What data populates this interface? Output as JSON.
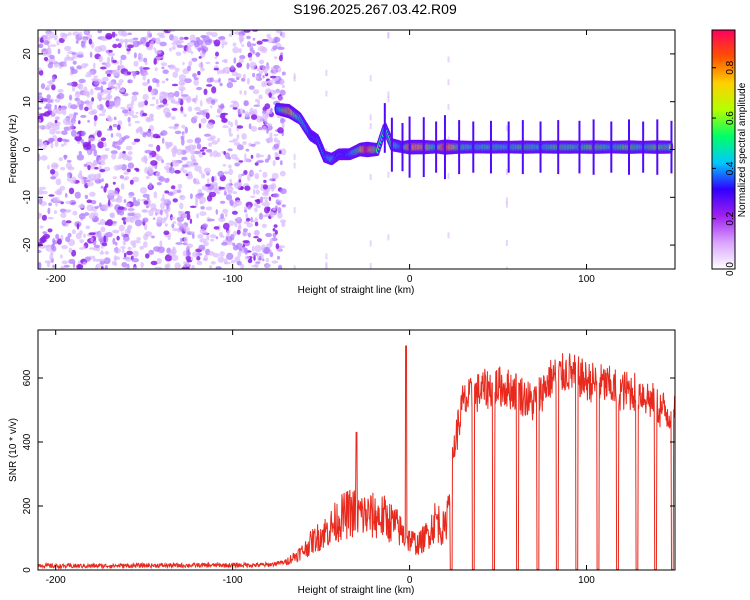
{
  "title": "S196.2025.267.03.42.R09",
  "chart_data": [
    {
      "type": "heatmap",
      "name": "spectrogram",
      "xlabel": "Height of straight line (km)",
      "ylabel": "Frequency (Hz)",
      "xlim": [
        -210,
        150
      ],
      "ylim": [
        -25,
        25
      ],
      "xticks": [
        -200,
        -100,
        0,
        100
      ],
      "yticks": [
        -20,
        -10,
        0,
        10,
        20
      ],
      "noise_region_x": [
        -210,
        -75
      ],
      "ridge": [
        {
          "x": -75,
          "f": 8.5,
          "a": 0.35
        },
        {
          "x": -68,
          "f": 8.0,
          "a": 0.75
        },
        {
          "x": -62,
          "f": 6.5,
          "a": 0.45
        },
        {
          "x": -56,
          "f": 3.0,
          "a": 0.35
        },
        {
          "x": -52,
          "f": 2.0,
          "a": 0.3
        },
        {
          "x": -48,
          "f": -1.5,
          "a": 0.35
        },
        {
          "x": -44,
          "f": -2.0,
          "a": 0.45
        },
        {
          "x": -40,
          "f": -1.0,
          "a": 0.3
        },
        {
          "x": -34,
          "f": -1.0,
          "a": 0.35
        },
        {
          "x": -28,
          "f": 0.0,
          "a": 0.6
        },
        {
          "x": -24,
          "f": 0.0,
          "a": 0.95
        },
        {
          "x": -18,
          "f": 0.0,
          "a": 0.5
        },
        {
          "x": -14,
          "f": 4.5,
          "a": 0.4
        },
        {
          "x": -10,
          "f": 1.0,
          "a": 0.55
        },
        {
          "x": -4,
          "f": 0.5,
          "a": 0.35
        },
        {
          "x": 0,
          "f": 0.5,
          "a": 0.8
        },
        {
          "x": 8,
          "f": 0.5,
          "a": 0.75
        },
        {
          "x": 15,
          "f": 0.5,
          "a": 0.45
        },
        {
          "x": 20,
          "f": 0.5,
          "a": 0.9
        },
        {
          "x": 28,
          "f": 0.5,
          "a": 0.55
        },
        {
          "x": 36,
          "f": 0.5,
          "a": 0.45
        },
        {
          "x": 46,
          "f": 0.5,
          "a": 0.5
        },
        {
          "x": 56,
          "f": 0.5,
          "a": 0.45
        },
        {
          "x": 64,
          "f": 0.5,
          "a": 0.55
        },
        {
          "x": 74,
          "f": 0.5,
          "a": 0.45
        },
        {
          "x": 84,
          "f": 0.5,
          "a": 0.55
        },
        {
          "x": 96,
          "f": 0.5,
          "a": 0.5
        },
        {
          "x": 104,
          "f": 0.5,
          "a": 0.6
        },
        {
          "x": 114,
          "f": 0.5,
          "a": 0.45
        },
        {
          "x": 124,
          "f": 0.5,
          "a": 0.6
        },
        {
          "x": 132,
          "f": 0.5,
          "a": 0.45
        },
        {
          "x": 140,
          "f": 0.5,
          "a": 0.6
        },
        {
          "x": 148,
          "f": 0.5,
          "a": 0.5
        }
      ],
      "colorbar": {
        "label": "Normalized spectral amplitude",
        "ticks": [
          "0.0",
          "0.2",
          "0.4",
          "0.6",
          "0.8"
        ],
        "tick_values": [
          0.0,
          0.2,
          0.4,
          0.6,
          0.8
        ],
        "range": [
          0,
          0.95
        ],
        "colors": [
          "#ffffff",
          "#d9a3ff",
          "#a020f0",
          "#3000ff",
          "#00c8ff",
          "#00ff66",
          "#b4ff00",
          "#ffd000",
          "#ff5000",
          "#ff0060"
        ]
      }
    },
    {
      "type": "line",
      "name": "snr",
      "xlabel": "Height of straight line (km)",
      "ylabel": "SNR (10 * v/v)",
      "xlim": [
        -210,
        150
      ],
      "ylim": [
        0,
        750
      ],
      "xticks": [
        -200,
        -100,
        0,
        100
      ],
      "yticks": [
        0,
        200,
        400,
        600
      ],
      "color": "#e8291d",
      "profile": [
        [
          -210,
          15
        ],
        [
          -200,
          12
        ],
        [
          -150,
          14
        ],
        [
          -100,
          15
        ],
        [
          -80,
          16
        ],
        [
          -70,
          25
        ],
        [
          -60,
          60
        ],
        [
          -55,
          90
        ],
        [
          -45,
          130
        ],
        [
          -40,
          160
        ],
        [
          -33,
          180
        ],
        [
          -25,
          170
        ],
        [
          -15,
          165
        ],
        [
          -8,
          140
        ],
        [
          -2,
          100
        ],
        [
          5,
          80
        ],
        [
          10,
          110
        ],
        [
          15,
          160
        ],
        [
          20,
          120
        ],
        [
          25,
          380
        ],
        [
          30,
          520
        ],
        [
          40,
          560
        ],
        [
          50,
          575
        ],
        [
          60,
          560
        ],
        [
          70,
          520
        ],
        [
          80,
          600
        ],
        [
          90,
          620
        ],
        [
          100,
          590
        ],
        [
          110,
          580
        ],
        [
          120,
          560
        ],
        [
          130,
          560
        ],
        [
          140,
          510
        ],
        [
          150,
          480
        ]
      ],
      "dropouts": [
        [
          23,
          24
        ],
        [
          35.5,
          36.5
        ],
        [
          47,
          48
        ],
        [
          60.5,
          61.5
        ],
        [
          72,
          73
        ],
        [
          83,
          84
        ],
        [
          94,
          95
        ],
        [
          106,
          107
        ],
        [
          117,
          118
        ],
        [
          128,
          129
        ],
        [
          138.5,
          139.5
        ],
        [
          148,
          149
        ]
      ],
      "spikes": [
        [
          -30,
          430
        ],
        [
          -2,
          700
        ]
      ]
    }
  ]
}
